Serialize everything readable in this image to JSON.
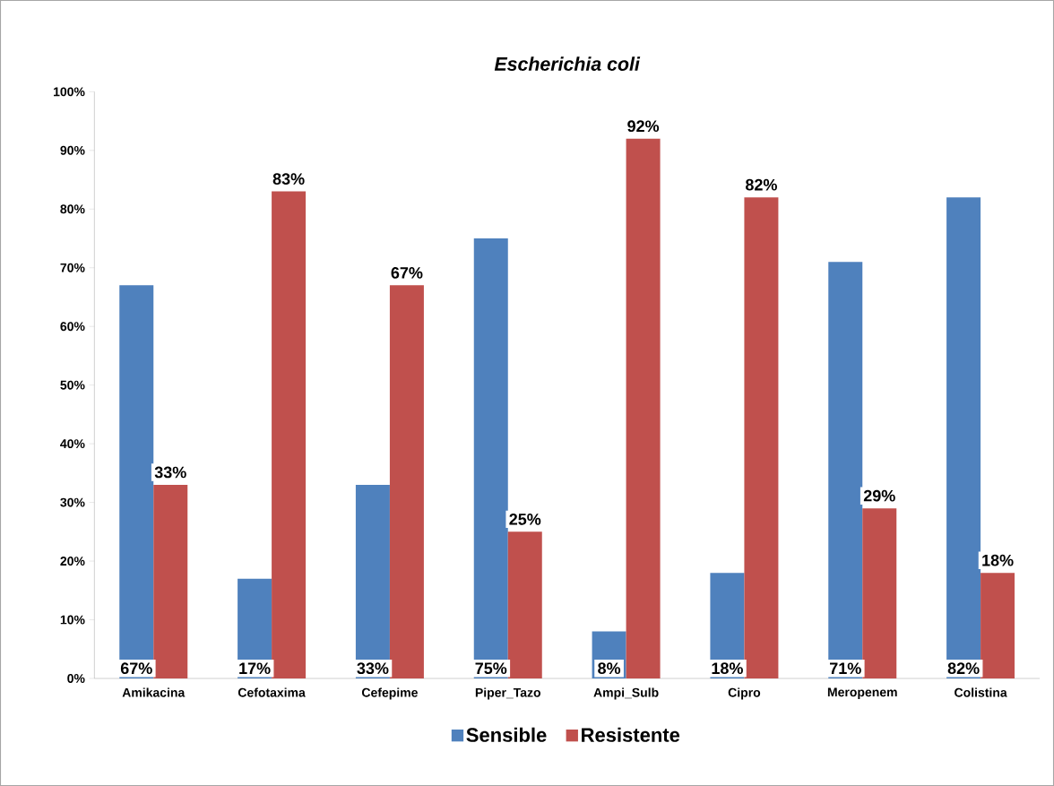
{
  "chart_data": {
    "type": "bar",
    "title": "Escherichia coli",
    "categories": [
      "Amikacina",
      "Cefotaxima",
      "Cefepime",
      "Piper_Tazo",
      "Ampi_Sulb",
      "Cipro",
      "Meropenem",
      "Colistina"
    ],
    "series": [
      {
        "name": "Sensible",
        "color": "#4f81bd",
        "values": [
          67,
          17,
          33,
          75,
          8,
          18,
          71,
          82
        ],
        "value_labels": [
          "67%",
          "17%",
          "33%",
          "75%",
          "8%",
          "18%",
          "71%",
          "82%"
        ]
      },
      {
        "name": "Resistente",
        "color": "#c0504d",
        "values": [
          33,
          83,
          67,
          25,
          92,
          82,
          29,
          18
        ],
        "value_labels": [
          "33%",
          "83%",
          "67%",
          "25%",
          "92%",
          "82%",
          "29%",
          "18%"
        ]
      }
    ],
    "ylim": [
      0,
      100
    ],
    "yticks": [
      {
        "value": 0,
        "label": "0%"
      },
      {
        "value": 10,
        "label": "10%"
      },
      {
        "value": 20,
        "label": "20%"
      },
      {
        "value": 30,
        "label": "30%"
      },
      {
        "value": 40,
        "label": "40%"
      },
      {
        "value": 50,
        "label": "50%"
      },
      {
        "value": 60,
        "label": "60%"
      },
      {
        "value": 70,
        "label": "70%"
      },
      {
        "value": 80,
        "label": "80%"
      },
      {
        "value": 90,
        "label": "90%"
      },
      {
        "value": 100,
        "label": "100%"
      }
    ],
    "legend": "bottom"
  }
}
